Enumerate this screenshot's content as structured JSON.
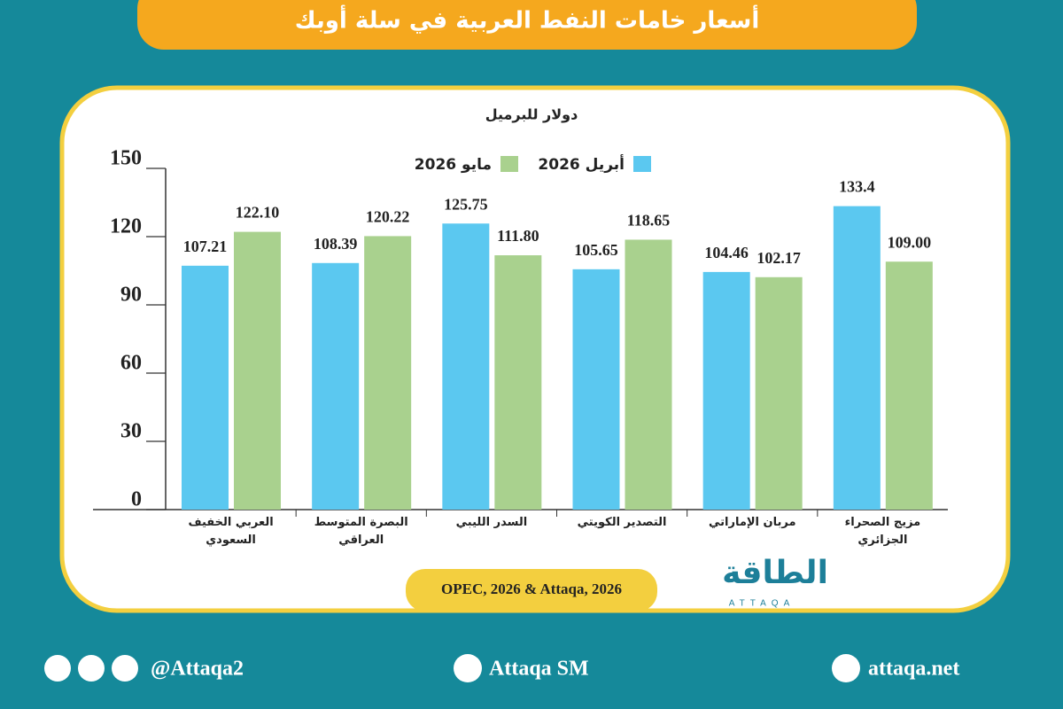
{
  "header": {
    "title": "أسعار خامات النفط العربية في سلة أوبك"
  },
  "chart_data": {
    "type": "bar",
    "y_label": "دولار للبرميل",
    "categories": [
      "العربي الخفيف السعودي",
      "البصرة المتوسط العراقي",
      "السدر الليبي",
      "التصدير الكويتي",
      "مربان الإماراتي",
      "مزيج الصحراء الجزائري"
    ],
    "series": [
      {
        "name": "أبريل 2026",
        "color": "#5bc8f0",
        "values": [
          107.21,
          108.39,
          125.75,
          105.65,
          104.46,
          133.4
        ]
      },
      {
        "name": "مايو 2026",
        "color": "#a9d18e",
        "values": [
          122.1,
          120.22,
          111.8,
          118.65,
          102.17,
          109.0
        ],
        "value_labels": [
          "122.10",
          "120.22",
          "111.80",
          "118.65",
          "102.17",
          "109.00"
        ]
      }
    ],
    "ylim": [
      0,
      150
    ],
    "yticks": [
      0,
      30,
      60,
      90,
      120,
      150
    ],
    "source": "OPEC, 2026 & Attaqa, 2026"
  },
  "logo": {
    "arabic": "الطاقة",
    "latin": "ATTAQA"
  },
  "footer": {
    "social": "@Attaqa2",
    "youtube": "Attaqa SM",
    "website": "attaqa.net"
  }
}
